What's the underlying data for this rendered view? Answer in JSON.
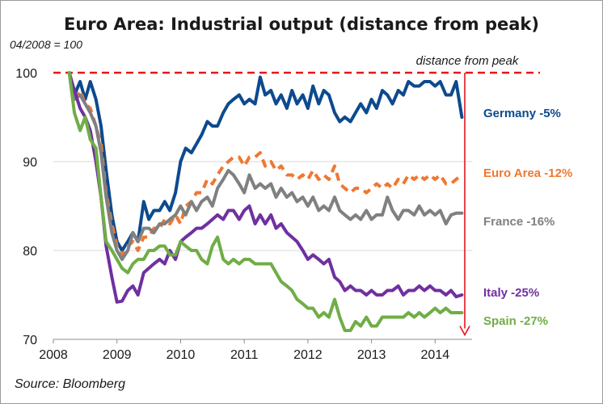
{
  "chart_data": {
    "type": "line",
    "title": "Euro Area: Industrial output (distance from peak)",
    "subtitle": "04/2008 = 100",
    "source": "Source: Bloomberg",
    "peak_label": "distance from peak",
    "xlim": [
      2008,
      2014.58
    ],
    "ylim": [
      70,
      100
    ],
    "x_ticks": [
      2008,
      2009,
      2010,
      2011,
      2012,
      2013,
      2014
    ],
    "x_tick_labels": [
      "2008",
      "2009",
      "2010",
      "2011",
      "2012",
      "2013",
      "2014"
    ],
    "y_ticks": [
      70,
      80,
      90,
      100
    ],
    "y_tick_labels": [
      "70",
      "80",
      "90",
      "100"
    ],
    "grid": "horizontal",
    "reference_line": {
      "y": 100,
      "style": "dashed",
      "color": "#e8141b"
    },
    "arrow": {
      "from": 100,
      "to": 70.5,
      "color": "#e8141b"
    },
    "series": [
      {
        "name": "Germany",
        "label": "Germany -5%",
        "color": "#0d4a8e",
        "style": "solid",
        "x": [
          2008.25,
          2008.33,
          2008.42,
          2008.5,
          2008.58,
          2008.67,
          2008.75,
          2008.83,
          2008.92,
          2009.0,
          2009.08,
          2009.17,
          2009.25,
          2009.33,
          2009.42,
          2009.5,
          2009.58,
          2009.67,
          2009.75,
          2009.83,
          2009.92,
          2010.0,
          2010.08,
          2010.17,
          2010.25,
          2010.33,
          2010.42,
          2010.5,
          2010.58,
          2010.67,
          2010.75,
          2010.83,
          2010.92,
          2011.0,
          2011.08,
          2011.17,
          2011.25,
          2011.33,
          2011.42,
          2011.5,
          2011.58,
          2011.67,
          2011.75,
          2011.83,
          2011.92,
          2012.0,
          2012.08,
          2012.17,
          2012.25,
          2012.33,
          2012.42,
          2012.5,
          2012.58,
          2012.67,
          2012.75,
          2012.83,
          2012.92,
          2013.0,
          2013.08,
          2013.17,
          2013.25,
          2013.33,
          2013.42,
          2013.5,
          2013.58,
          2013.67,
          2013.75,
          2013.83,
          2013.92,
          2014.0,
          2014.08,
          2014.17,
          2014.25,
          2014.33,
          2014.42
        ],
        "y": [
          100,
          97.5,
          99,
          97,
          99,
          97,
          94,
          89,
          84,
          81,
          80,
          81,
          82,
          81,
          85.5,
          83.5,
          84.5,
          84.5,
          85.5,
          84.5,
          86.5,
          90,
          91.5,
          91,
          92,
          93,
          94.5,
          94,
          94,
          95.5,
          96.5,
          97,
          97.5,
          96.5,
          97,
          96.5,
          99.5,
          97.5,
          98,
          96.5,
          97.5,
          96,
          98,
          96.5,
          97.5,
          96,
          98.5,
          96.5,
          98,
          97.5,
          95.5,
          94.5,
          95,
          94.5,
          95.5,
          96.5,
          95.5,
          97,
          96,
          98,
          97.5,
          96.5,
          98,
          97.5,
          99,
          98.5,
          98.5,
          99,
          99,
          98.5,
          99,
          97.5,
          97.5,
          99,
          95
        ]
      },
      {
        "name": "Euro Area",
        "label": "Euro Area -12%",
        "color": "#ee7833",
        "style": "dashed",
        "x": [
          2008.25,
          2008.33,
          2008.42,
          2008.5,
          2008.58,
          2008.67,
          2008.75,
          2008.83,
          2008.92,
          2009.0,
          2009.08,
          2009.17,
          2009.25,
          2009.33,
          2009.42,
          2009.5,
          2009.58,
          2009.67,
          2009.75,
          2009.83,
          2009.92,
          2010.0,
          2010.08,
          2010.17,
          2010.25,
          2010.33,
          2010.42,
          2010.5,
          2010.58,
          2010.67,
          2010.75,
          2010.83,
          2010.92,
          2011.0,
          2011.08,
          2011.17,
          2011.25,
          2011.33,
          2011.42,
          2011.5,
          2011.58,
          2011.67,
          2011.75,
          2011.83,
          2011.92,
          2012.0,
          2012.08,
          2012.17,
          2012.25,
          2012.33,
          2012.42,
          2012.5,
          2012.58,
          2012.67,
          2012.75,
          2012.83,
          2012.92,
          2013.0,
          2013.08,
          2013.17,
          2013.25,
          2013.33,
          2013.42,
          2013.5,
          2013.58,
          2013.67,
          2013.75,
          2013.83,
          2013.92,
          2014.0,
          2014.08,
          2014.17,
          2014.25,
          2014.33,
          2014.42
        ],
        "y": [
          100,
          97,
          98,
          96.5,
          96,
          94,
          92,
          86.5,
          83,
          80.5,
          79.5,
          80.5,
          81,
          80,
          81.5,
          81.5,
          82.5,
          82.5,
          83.5,
          83,
          84,
          83,
          85,
          85.5,
          86.5,
          86.5,
          88,
          87.5,
          88.5,
          89.5,
          90,
          90.5,
          90.5,
          89.5,
          90.5,
          90.5,
          91,
          89.5,
          90,
          89,
          89.5,
          88.5,
          88.5,
          88,
          88.5,
          88,
          89,
          88,
          88.5,
          88,
          89.5,
          87.5,
          87,
          86.5,
          87,
          87,
          86.5,
          87,
          87.5,
          87,
          87.5,
          87,
          88,
          87.5,
          88.5,
          88,
          88.5,
          88,
          88.5,
          88,
          88.5,
          87.5,
          87.5,
          88,
          88.5
        ]
      },
      {
        "name": "France",
        "label": "France -16%",
        "color": "#808080",
        "style": "solid",
        "x": [
          2008.25,
          2008.33,
          2008.42,
          2008.5,
          2008.58,
          2008.67,
          2008.75,
          2008.83,
          2008.92,
          2009.0,
          2009.08,
          2009.17,
          2009.25,
          2009.33,
          2009.42,
          2009.5,
          2009.58,
          2009.67,
          2009.75,
          2009.83,
          2009.92,
          2010.0,
          2010.08,
          2010.17,
          2010.25,
          2010.33,
          2010.42,
          2010.5,
          2010.58,
          2010.67,
          2010.75,
          2010.83,
          2010.92,
          2011.0,
          2011.08,
          2011.17,
          2011.25,
          2011.33,
          2011.42,
          2011.5,
          2011.58,
          2011.67,
          2011.75,
          2011.83,
          2011.92,
          2012.0,
          2012.08,
          2012.17,
          2012.25,
          2012.33,
          2012.42,
          2012.5,
          2012.58,
          2012.67,
          2012.75,
          2012.83,
          2012.92,
          2013.0,
          2013.08,
          2013.17,
          2013.25,
          2013.33,
          2013.42,
          2013.5,
          2013.58,
          2013.67,
          2013.75,
          2013.83,
          2013.92,
          2014.0,
          2014.08,
          2014.17,
          2014.25,
          2014.33,
          2014.42
        ],
        "y": [
          100,
          97,
          97.5,
          96.5,
          95.5,
          94,
          91,
          86,
          82,
          80,
          79,
          80,
          82,
          81,
          82.5,
          82.5,
          82,
          83,
          83,
          83.5,
          84,
          85,
          84,
          85.5,
          84.5,
          85.5,
          86,
          85,
          87,
          88,
          89,
          88.5,
          87.5,
          86.5,
          88.5,
          87,
          87.5,
          87,
          87.5,
          86,
          87,
          86,
          86.5,
          85.5,
          86,
          85,
          86,
          84.5,
          85,
          84.5,
          86,
          84.5,
          84,
          83.5,
          84,
          83.5,
          84.5,
          83.5,
          84,
          84,
          86,
          84.5,
          83.5,
          84.5,
          84.5,
          84,
          85,
          84,
          84.5,
          84,
          84.5,
          83,
          84,
          84.2,
          84.2
        ]
      },
      {
        "name": "Italy",
        "label": "Italy -25%",
        "color": "#7030a0",
        "style": "solid",
        "x": [
          2008.25,
          2008.33,
          2008.42,
          2008.5,
          2008.58,
          2008.67,
          2008.75,
          2008.83,
          2008.92,
          2009.0,
          2009.08,
          2009.17,
          2009.25,
          2009.33,
          2009.42,
          2009.5,
          2009.58,
          2009.67,
          2009.75,
          2009.83,
          2009.92,
          2010.0,
          2010.08,
          2010.17,
          2010.25,
          2010.33,
          2010.42,
          2010.5,
          2010.58,
          2010.67,
          2010.75,
          2010.83,
          2010.92,
          2011.0,
          2011.08,
          2011.17,
          2011.25,
          2011.33,
          2011.42,
          2011.5,
          2011.58,
          2011.67,
          2011.75,
          2011.83,
          2011.92,
          2012.0,
          2012.08,
          2012.17,
          2012.25,
          2012.33,
          2012.42,
          2012.5,
          2012.58,
          2012.67,
          2012.75,
          2012.83,
          2012.92,
          2013.0,
          2013.08,
          2013.17,
          2013.25,
          2013.33,
          2013.42,
          2013.5,
          2013.58,
          2013.67,
          2013.75,
          2013.83,
          2013.92,
          2014.0,
          2014.08,
          2014.17,
          2014.25,
          2014.33,
          2014.42
        ],
        "y": [
          100,
          98,
          96,
          95,
          93.5,
          90,
          86,
          80.5,
          77,
          74.2,
          74.3,
          75.5,
          76,
          75,
          77.5,
          78,
          78.5,
          79,
          78.5,
          80,
          79,
          81,
          81.5,
          82,
          82.5,
          82.5,
          83,
          83.5,
          84,
          83.5,
          84.5,
          84.5,
          83.5,
          84.5,
          85,
          83,
          84,
          83,
          84,
          82.5,
          83,
          82,
          81.5,
          81,
          80,
          79,
          79.5,
          79,
          78.5,
          79,
          77,
          76.5,
          75.5,
          76,
          75.5,
          75.5,
          75,
          75.5,
          75,
          75,
          75.5,
          75.5,
          76,
          75,
          75.5,
          75.5,
          76,
          75.5,
          76,
          75.5,
          75.5,
          75,
          75.5,
          74.8,
          75
        ]
      },
      {
        "name": "Spain",
        "label": "Spain -27%",
        "color": "#70ad47",
        "style": "solid",
        "x": [
          2008.25,
          2008.33,
          2008.42,
          2008.5,
          2008.58,
          2008.67,
          2008.75,
          2008.83,
          2008.92,
          2009.0,
          2009.08,
          2009.17,
          2009.25,
          2009.33,
          2009.42,
          2009.5,
          2009.58,
          2009.67,
          2009.75,
          2009.83,
          2009.92,
          2010.0,
          2010.08,
          2010.17,
          2010.25,
          2010.33,
          2010.42,
          2010.5,
          2010.58,
          2010.67,
          2010.75,
          2010.83,
          2010.92,
          2011.0,
          2011.08,
          2011.17,
          2011.25,
          2011.33,
          2011.42,
          2011.5,
          2011.58,
          2011.67,
          2011.75,
          2011.83,
          2011.92,
          2012.0,
          2012.08,
          2012.17,
          2012.25,
          2012.33,
          2012.42,
          2012.5,
          2012.58,
          2012.67,
          2012.75,
          2012.83,
          2012.92,
          2013.0,
          2013.08,
          2013.17,
          2013.25,
          2013.33,
          2013.42,
          2013.5,
          2013.58,
          2013.67,
          2013.75,
          2013.83,
          2013.92,
          2014.0,
          2014.08,
          2014.17,
          2014.25,
          2014.33,
          2014.42
        ],
        "y": [
          100,
          95.5,
          93.5,
          95,
          92.5,
          91.5,
          86,
          81,
          80,
          79,
          78,
          77.5,
          78.5,
          79,
          79,
          80,
          80,
          80.5,
          80.5,
          79.5,
          79.5,
          81,
          80.5,
          80,
          80,
          79,
          78.5,
          80.5,
          81.5,
          79,
          78.5,
          79,
          78.5,
          79,
          79,
          78.5,
          78.5,
          78.5,
          78.5,
          77.5,
          76.5,
          76,
          75.5,
          74.5,
          74,
          73.5,
          73.5,
          72.5,
          73,
          72.5,
          74.5,
          72.5,
          71,
          71,
          72,
          71.5,
          72.5,
          71.5,
          71.5,
          72.5,
          72.5,
          72.5,
          72.5,
          72.5,
          73,
          72.5,
          73,
          72.5,
          73,
          73.5,
          73,
          73.5,
          73,
          73,
          73
        ]
      }
    ]
  }
}
